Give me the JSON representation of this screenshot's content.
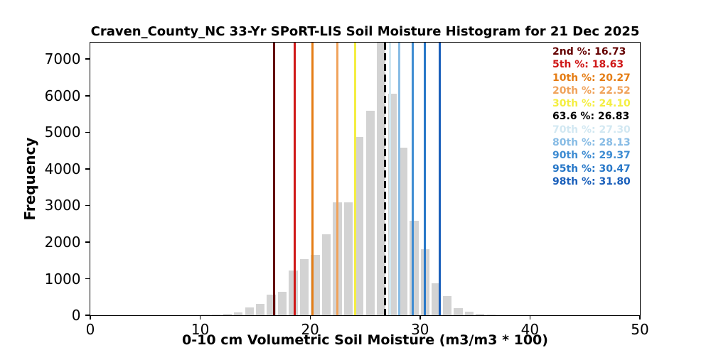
{
  "title": "Craven_County_NC 33-Yr SPoRT-LIS Soil Moisture Histogram for 21 Dec 2025",
  "chart_data": {
    "type": "bar",
    "subtype": "histogram",
    "title": "Craven_County_NC 33-Yr SPoRT-LIS Soil Moisture Histogram for 21 Dec 2025",
    "xlabel": "0-10 cm Volumetric Soil Moisture (m3/m3 * 100)",
    "ylabel": "Frequency",
    "xlim": [
      0,
      50
    ],
    "ylim": [
      0,
      7450
    ],
    "x_ticks": [
      0,
      10,
      20,
      30,
      40,
      50
    ],
    "y_ticks": [
      0,
      1000,
      2000,
      3000,
      4000,
      5000,
      6000,
      7000
    ],
    "grid": false,
    "bar_color": "#d3d3d3",
    "bin_left_offset": 0.1,
    "bin_draw_width": 0.8,
    "bins": [
      10,
      11,
      12,
      13,
      14,
      15,
      16,
      17,
      18,
      19,
      20,
      21,
      22,
      23,
      24,
      25,
      26,
      27,
      28,
      29,
      30,
      31,
      32,
      33,
      34,
      35,
      36
    ],
    "frequencies": [
      15,
      20,
      30,
      60,
      200,
      300,
      550,
      640,
      1220,
      1520,
      1650,
      2210,
      3080,
      3080,
      4860,
      5570,
      7450,
      6050,
      4570,
      2570,
      1790,
      870,
      510,
      180,
      80,
      35,
      15
    ],
    "tallest_bin_clipped_at_top": 26,
    "legend_position": "upper right",
    "percentile_lines": [
      {
        "pct_label": "2nd %",
        "value": 16.73,
        "value_text": "16.73",
        "color": "#640000",
        "style": "solid"
      },
      {
        "pct_label": "5th %",
        "value": 18.63,
        "value_text": "18.63",
        "color": "#cf1717",
        "style": "solid"
      },
      {
        "pct_label": "10th %",
        "value": 20.27,
        "value_text": "20.27",
        "color": "#e57d15",
        "style": "solid"
      },
      {
        "pct_label": "20th %",
        "value": 22.52,
        "value_text": "22.52",
        "color": "#f0a35c",
        "style": "solid"
      },
      {
        "pct_label": "30th %",
        "value": 24.1,
        "value_text": "24.10",
        "color": "#f4ee42",
        "style": "solid"
      },
      {
        "pct_label": "63.6 %",
        "value": 26.83,
        "value_text": "26.83",
        "color": "#000000",
        "style": "dashed"
      },
      {
        "pct_label": "70th %",
        "value": 27.3,
        "value_text": "27.30",
        "color": "#d2e8f2",
        "style": "solid"
      },
      {
        "pct_label": "80th %",
        "value": 28.13,
        "value_text": "28.13",
        "color": "#88bce5",
        "style": "solid"
      },
      {
        "pct_label": "90th %",
        "value": 29.37,
        "value_text": "29.37",
        "color": "#3e8cd2",
        "style": "solid"
      },
      {
        "pct_label": "95th %",
        "value": 30.47,
        "value_text": "30.47",
        "color": "#2878c8",
        "style": "solid"
      },
      {
        "pct_label": "98th %",
        "value": 31.8,
        "value_text": "31.80",
        "color": "#1b60bb",
        "style": "solid"
      }
    ]
  }
}
